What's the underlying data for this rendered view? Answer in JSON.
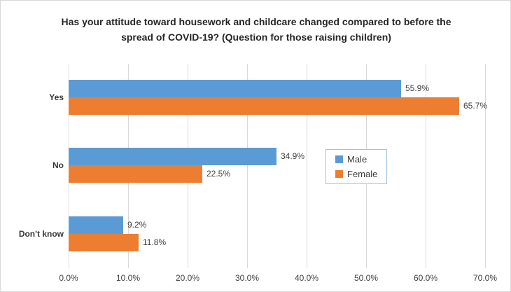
{
  "chart_data": {
    "type": "bar",
    "orientation": "horizontal",
    "title": "Has your attitude toward housework and childcare changed compared to before the spread of COVID-19? (Question for those raising children)",
    "title_lines": [
      "Has your attitude toward housework and childcare changed compared to before the",
      "spread of COVID-19? (Question for those raising children)"
    ],
    "categories": [
      "Yes",
      "No",
      "Don't know"
    ],
    "series": [
      {
        "name": "Male",
        "color": "#5B9BD5",
        "values": [
          55.9,
          34.9,
          9.2
        ],
        "labels": [
          "55.9%",
          "34.9%",
          "9.2%"
        ]
      },
      {
        "name": "Female",
        "color": "#ED7D31",
        "values": [
          65.7,
          22.5,
          11.8
        ],
        "labels": [
          "65.7%",
          "22.5%",
          "11.8%"
        ]
      }
    ],
    "xlabel": "",
    "ylabel": "",
    "xlim": [
      0,
      70
    ],
    "x_ticks": [
      "0.0%",
      "10.0%",
      "20.0%",
      "30.0%",
      "40.0%",
      "50.0%",
      "60.0%",
      "70.0%"
    ],
    "grid": "vertical-on",
    "legend_position": "middle-right",
    "colors": {
      "gridline": "#D9D9D9",
      "chart_border": "#D9D9D9",
      "legend_border": "#9DC3E6",
      "text": "#404040"
    }
  }
}
